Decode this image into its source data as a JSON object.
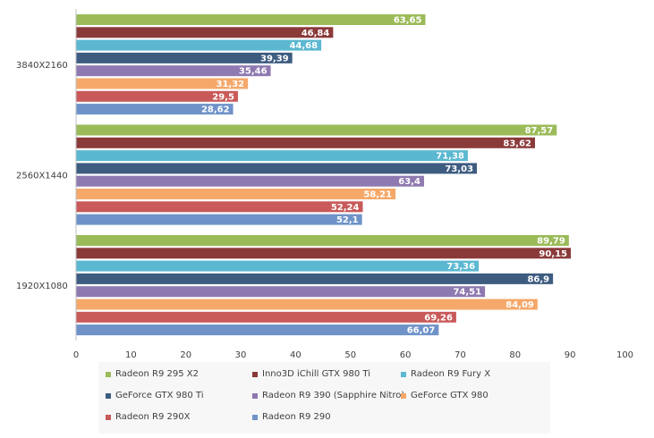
{
  "chart_data": {
    "type": "bar",
    "orientation": "horizontal",
    "title": "",
    "xlabel": "",
    "ylabel": "",
    "xlim": [
      0,
      100
    ],
    "x_ticks": [
      0,
      10,
      20,
      30,
      40,
      50,
      60,
      70,
      80,
      90,
      100
    ],
    "categories": [
      "3840X2160",
      "2560X1440",
      "1920X1080"
    ],
    "series": [
      {
        "name": "Radeon R9 295 X2",
        "color": "#9bbb59",
        "labels": [
          "63,65",
          "87,57",
          "89,79"
        ],
        "values": [
          63.65,
          87.57,
          89.79
        ]
      },
      {
        "name": "Inno3D iChill GTX 980 Ti",
        "color": "#8b3a3a",
        "labels": [
          "46,84",
          "83,62",
          "90,15"
        ],
        "values": [
          46.84,
          83.62,
          90.15
        ]
      },
      {
        "name": "Radeon R9 Fury X",
        "color": "#5bb8d0",
        "labels": [
          "44,68",
          "71,38",
          "73,36"
        ],
        "values": [
          44.68,
          71.38,
          73.36
        ]
      },
      {
        "name": "GeForce GTX 980 Ti",
        "color": "#3e5c80",
        "labels": [
          "39,39",
          "73,03",
          "86,9"
        ],
        "values": [
          39.39,
          73.03,
          86.9
        ]
      },
      {
        "name": "Radeon R9 390 (Sapphire Nitro)",
        "color": "#8e79b0",
        "labels": [
          "35,46",
          "63,4",
          "74,51"
        ],
        "values": [
          35.46,
          63.4,
          74.51
        ]
      },
      {
        "name": "GeForce GTX 980",
        "color": "#f5a86a",
        "labels": [
          "31,32",
          "58,21",
          "84,09"
        ],
        "values": [
          31.32,
          58.21,
          84.09
        ]
      },
      {
        "name": "Radeon R9 290X",
        "color": "#c95a5a",
        "labels": [
          "29,5",
          "52,24",
          "69,26"
        ],
        "values": [
          29.5,
          52.24,
          69.26
        ]
      },
      {
        "name": "Radeon R9 290",
        "color": "#6f93c8",
        "labels": [
          "28,62",
          "52,1",
          "66,07"
        ],
        "values": [
          28.62,
          52.1,
          66.07
        ]
      }
    ],
    "legend": "bottom",
    "grid": false
  }
}
